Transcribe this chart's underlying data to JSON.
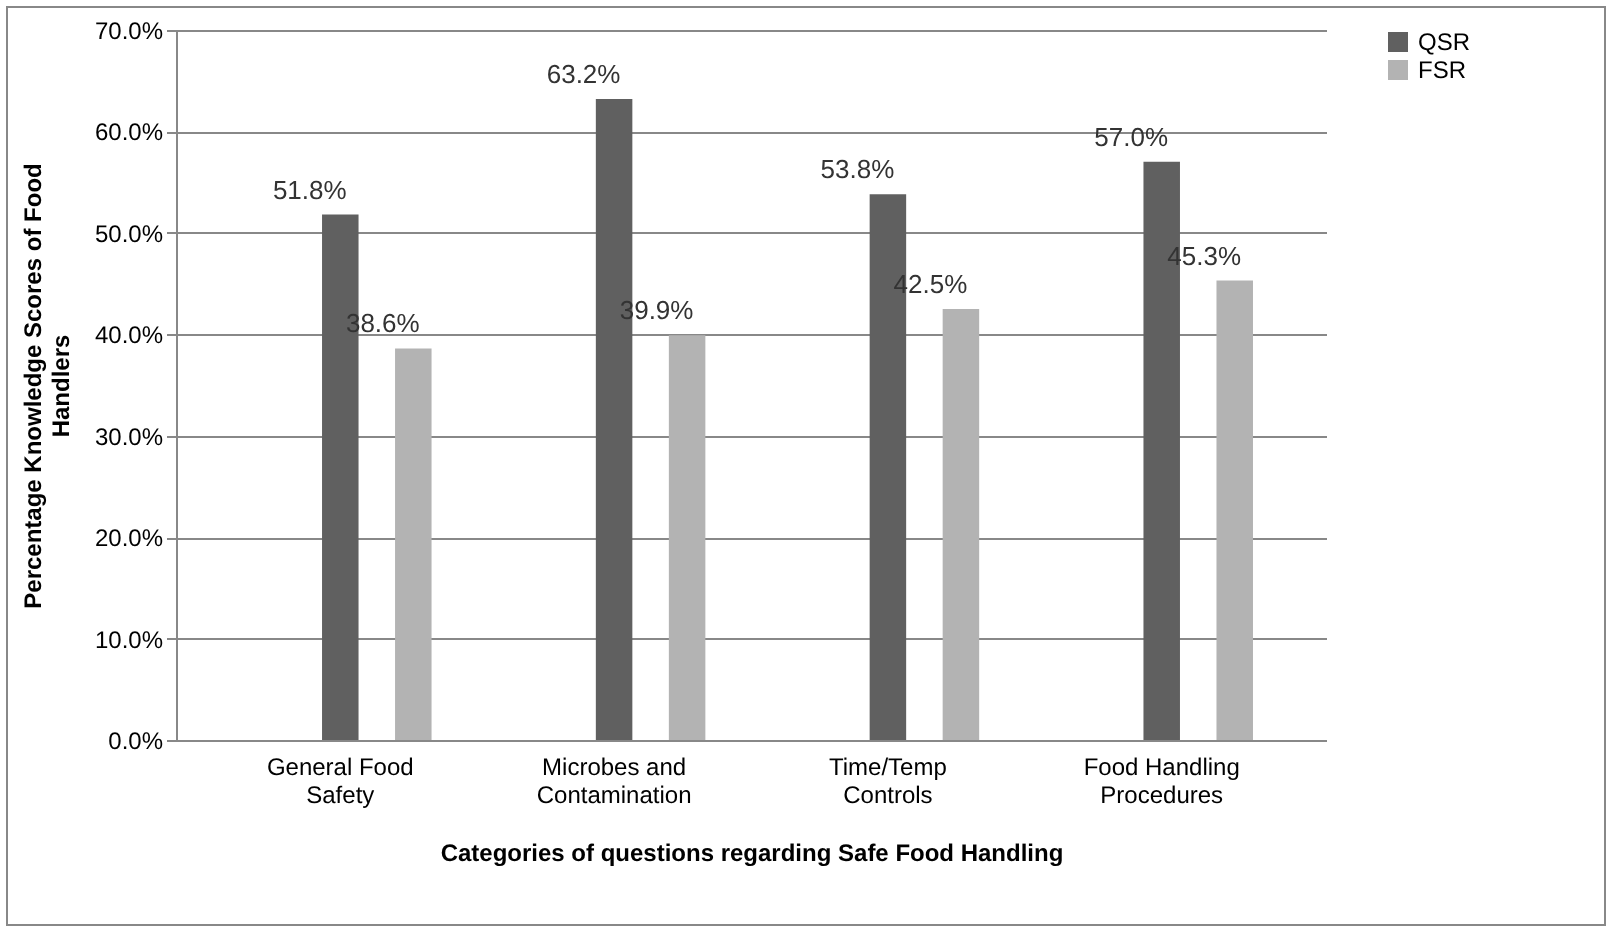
{
  "chart_data": {
    "type": "bar",
    "xlabel": "Categories of questions regarding Safe Food Handling",
    "ylabel": "Percentage Knowledge Scores of Food Handlers",
    "categories": [
      "General Food Safety",
      "Microbes and Contamination",
      "Time/Temp Controls",
      "Food Handling Procedures"
    ],
    "series": [
      {
        "name": "QSR",
        "color": "#606060",
        "values": [
          51.8,
          63.2,
          53.8,
          57.0
        ],
        "value_labels": [
          "51.8%",
          "63.2%",
          "53.8%",
          "57.0%"
        ]
      },
      {
        "name": "FSR",
        "color": "#b3b3b3",
        "values": [
          38.6,
          39.9,
          42.5,
          45.3
        ],
        "value_labels": [
          "38.6%",
          "39.9%",
          "42.5%",
          "45.3%"
        ]
      }
    ],
    "ylim": [
      0,
      70
    ],
    "yticks": [
      {
        "value": 0,
        "label": "0.0%"
      },
      {
        "value": 10,
        "label": "10.0%"
      },
      {
        "value": 20,
        "label": "20.0%"
      },
      {
        "value": 30,
        "label": "30.0%"
      },
      {
        "value": 40,
        "label": "40.0%"
      },
      {
        "value": 50,
        "label": "50.0%"
      },
      {
        "value": 60,
        "label": "60.0%"
      },
      {
        "value": 70,
        "label": "70.0%"
      }
    ],
    "grid": "y",
    "legend": "right"
  }
}
